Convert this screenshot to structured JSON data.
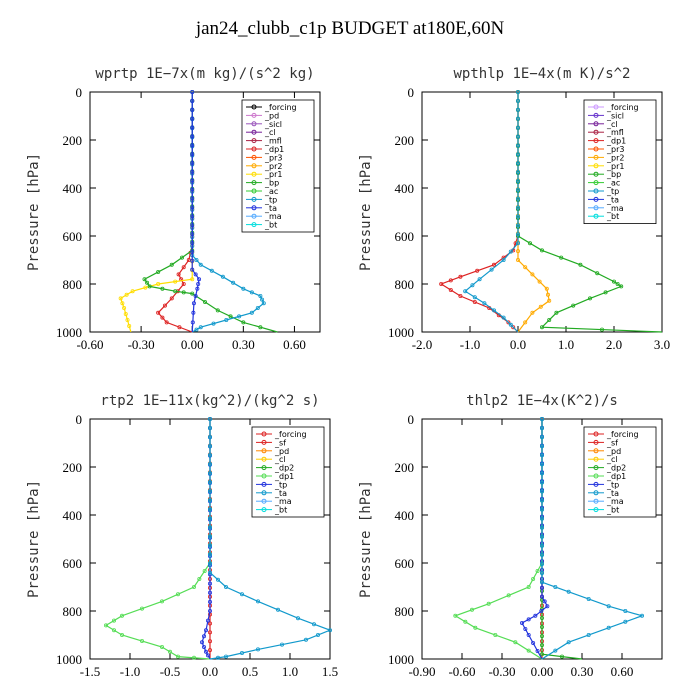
{
  "title": "jan24_clubb_c1p  BUDGET at180E,60N",
  "chart_data": [
    {
      "type": "line",
      "title": "wprtp   1E−7x(m kg)/(s^2 kg)",
      "ylabel": "Pressure [hPa]",
      "xlim": [
        -0.6,
        0.75
      ],
      "ylim": [
        0,
        1000
      ],
      "xticks": [
        -0.6,
        -0.3,
        0.0,
        0.3,
        0.6
      ],
      "xtick_labels": [
        "-0.60",
        "-0.30",
        "0.00",
        "0.30",
        "0.60"
      ],
      "yticks": [
        0,
        200,
        400,
        600,
        800,
        1000
      ],
      "ytick_labels": [
        "0",
        "200",
        "400",
        "600",
        "800",
        "1000"
      ],
      "legend_position": "top-right",
      "series": [
        {
          "name": "_forcing",
          "color": "#000000",
          "points": []
        },
        {
          "name": "_pd",
          "color": "#cc77cc",
          "points": []
        },
        {
          "name": "_sicl",
          "color": "#9955bb",
          "points": []
        },
        {
          "name": "_cl",
          "color": "#772299",
          "points": []
        },
        {
          "name": "_mfl",
          "color": "#aa2244",
          "points": []
        },
        {
          "name": "_dp1",
          "color": "#dd2222",
          "points": [
            [
              0,
              0
            ],
            [
              0,
              640
            ],
            [
              -0.02,
              700
            ],
            [
              -0.08,
              760
            ],
            [
              -0.05,
              800
            ],
            [
              -0.12,
              860
            ],
            [
              -0.2,
              920
            ],
            [
              -0.15,
              960
            ],
            [
              0,
              1000
            ]
          ]
        },
        {
          "name": "_pr3",
          "color": "#ff5500",
          "points": []
        },
        {
          "name": "_pr2",
          "color": "#ffaa00",
          "points": []
        },
        {
          "name": "_pr1",
          "color": "#ffdd00",
          "points": [
            [
              0,
              0
            ],
            [
              0,
              780
            ],
            [
              -0.2,
              800
            ],
            [
              -0.35,
              830
            ],
            [
              -0.42,
              860
            ],
            [
              -0.4,
              900
            ],
            [
              -0.38,
              950
            ],
            [
              -0.36,
              1000
            ]
          ]
        },
        {
          "name": "_bp",
          "color": "#22aa22",
          "points": [
            [
              0,
              0
            ],
            [
              0,
              660
            ],
            [
              -0.12,
              720
            ],
            [
              -0.28,
              780
            ],
            [
              -0.25,
              810
            ],
            [
              -0.1,
              830
            ],
            [
              0,
              840
            ],
            [
              0.15,
              910
            ],
            [
              0.3,
              960
            ],
            [
              0.5,
              1000
            ]
          ]
        },
        {
          "name": "_ac",
          "color": "#33cc33",
          "points": []
        },
        {
          "name": "_tp",
          "color": "#1199cc",
          "points": [
            [
              0,
              0
            ],
            [
              0,
              680
            ],
            [
              0.05,
              720
            ],
            [
              0.18,
              770
            ],
            [
              0.3,
              820
            ],
            [
              0.4,
              850
            ],
            [
              0.42,
              880
            ],
            [
              0.35,
              920
            ],
            [
              0.2,
              950
            ],
            [
              0.05,
              980
            ],
            [
              0,
              1000
            ]
          ]
        },
        {
          "name": "_ta",
          "color": "#2233dd",
          "points": [
            [
              0,
              0
            ],
            [
              0,
              740
            ],
            [
              0.04,
              780
            ],
            [
              0.03,
              820
            ],
            [
              0.01,
              880
            ],
            [
              0,
              1000
            ]
          ]
        },
        {
          "name": "_ma",
          "color": "#55aaff",
          "points": []
        },
        {
          "name": "_bt",
          "color": "#00dddd",
          "points": []
        }
      ]
    },
    {
      "type": "line",
      "title": "wpthlp   1E−4x(m K)/s^2",
      "ylabel": "Pressure [hPa]",
      "xlim": [
        -2.0,
        3.0
      ],
      "ylim": [
        0,
        1000
      ],
      "xticks": [
        -2.0,
        -1.0,
        0.0,
        1.0,
        2.0,
        3.0
      ],
      "xtick_labels": [
        "-2.0",
        "-1.0",
        "0.0",
        "1.0",
        "2.0",
        "3.0"
      ],
      "yticks": [
        0,
        200,
        400,
        600,
        800,
        1000
      ],
      "ytick_labels": [
        "0",
        "200",
        "400",
        "600",
        "800",
        "1000"
      ],
      "legend_position": "top-right",
      "series": [
        {
          "name": "_forcing",
          "color": "#cc99ff",
          "points": []
        },
        {
          "name": "_sicl",
          "color": "#6633cc",
          "points": []
        },
        {
          "name": "_cl",
          "color": "#772299",
          "points": []
        },
        {
          "name": "_mfl",
          "color": "#aa2244",
          "points": []
        },
        {
          "name": "_dp1",
          "color": "#dd2222",
          "points": [
            [
              0,
              0
            ],
            [
              0,
              600
            ],
            [
              -0.1,
              660
            ],
            [
              -0.5,
              720
            ],
            [
              -1.2,
              770
            ],
            [
              -1.6,
              800
            ],
            [
              -1.2,
              850
            ],
            [
              -0.6,
              900
            ],
            [
              -0.2,
              960
            ],
            [
              0,
              1000
            ]
          ]
        },
        {
          "name": "_pr3",
          "color": "#ff5500",
          "points": []
        },
        {
          "name": "_pr2",
          "color": "#ffaa00",
          "points": [
            [
              0,
              0
            ],
            [
              0,
              700
            ],
            [
              0.3,
              760
            ],
            [
              0.6,
              820
            ],
            [
              0.65,
              870
            ],
            [
              0.3,
              920
            ],
            [
              0,
              1000
            ]
          ]
        },
        {
          "name": "_pr1",
          "color": "#ffdd00",
          "points": []
        },
        {
          "name": "_bp",
          "color": "#22aa22",
          "points": [
            [
              0,
              0
            ],
            [
              0,
              600
            ],
            [
              0.5,
              660
            ],
            [
              1.3,
              720
            ],
            [
              2.0,
              790
            ],
            [
              2.15,
              810
            ],
            [
              1.5,
              860
            ],
            [
              0.8,
              920
            ],
            [
              0.5,
              980
            ],
            [
              3.0,
              1000
            ]
          ]
        },
        {
          "name": "_ac",
          "color": "#33cc33",
          "points": []
        },
        {
          "name": "_tp",
          "color": "#1199cc",
          "points": [
            [
              0,
              0
            ],
            [
              0,
              630
            ],
            [
              -0.3,
              700
            ],
            [
              -0.8,
              780
            ],
            [
              -1.1,
              830
            ],
            [
              -0.7,
              880
            ],
            [
              -0.3,
              940
            ],
            [
              0,
              1000
            ]
          ]
        },
        {
          "name": "_ta",
          "color": "#2233dd",
          "points": []
        },
        {
          "name": "_ma",
          "color": "#55aaff",
          "points": []
        },
        {
          "name": "_bt",
          "color": "#00dddd",
          "points": []
        }
      ]
    },
    {
      "type": "line",
      "title": "rtp2   1E−11x(kg^2)/(kg^2 s)",
      "ylabel": "Pressure [hPa]",
      "xlim": [
        -1.5,
        1.5
      ],
      "ylim": [
        0,
        1000
      ],
      "xticks": [
        -1.5,
        -1.0,
        -0.5,
        0.0,
        0.5,
        1.0,
        1.5
      ],
      "xtick_labels": [
        "-1.5",
        "-1.0",
        "-0.5",
        "0.0",
        "0.5",
        "1.0",
        "1.5"
      ],
      "yticks": [
        0,
        200,
        400,
        600,
        800,
        1000
      ],
      "ytick_labels": [
        "0",
        "200",
        "400",
        "600",
        "800",
        "1000"
      ],
      "legend_position": "top-right",
      "series": [
        {
          "name": "_forcing",
          "color": "#dd2222",
          "points": []
        },
        {
          "name": "_sf",
          "color": "#dd2222",
          "points": [
            [
              0,
              0
            ],
            [
              0,
              1000
            ]
          ]
        },
        {
          "name": "_pd",
          "color": "#ff8800",
          "points": []
        },
        {
          "name": "_cl",
          "color": "#ffcc00",
          "points": []
        },
        {
          "name": "_dp2",
          "color": "#22aa22",
          "points": []
        },
        {
          "name": "_dp1",
          "color": "#55dd55",
          "points": [
            [
              0,
              0
            ],
            [
              0,
              600
            ],
            [
              -0.2,
              700
            ],
            [
              -0.6,
              760
            ],
            [
              -1.1,
              820
            ],
            [
              -1.3,
              860
            ],
            [
              -1.1,
              900
            ],
            [
              -0.6,
              950
            ],
            [
              -0.4,
              990
            ],
            [
              0,
              1000
            ]
          ]
        },
        {
          "name": "_tp",
          "color": "#2233dd",
          "points": [
            [
              0,
              0
            ],
            [
              0,
              800
            ],
            [
              -0.05,
              880
            ],
            [
              -0.1,
              930
            ],
            [
              -0.05,
              970
            ],
            [
              0,
              1000
            ]
          ]
        },
        {
          "name": "_ta",
          "color": "#1199cc",
          "points": [
            [
              0,
              0
            ],
            [
              0,
              640
            ],
            [
              0.2,
              700
            ],
            [
              0.6,
              760
            ],
            [
              1.1,
              830
            ],
            [
              1.5,
              880
            ],
            [
              1.2,
              920
            ],
            [
              0.6,
              960
            ],
            [
              0.2,
              990
            ],
            [
              0,
              1000
            ]
          ]
        },
        {
          "name": "_ma",
          "color": "#55aaff",
          "points": []
        },
        {
          "name": "_bt",
          "color": "#00dddd",
          "points": []
        }
      ]
    },
    {
      "type": "line",
      "title": "thlp2   1E−4x(K^2)/s",
      "ylabel": "Pressure [hPa]",
      "xlim": [
        -0.9,
        0.9
      ],
      "ylim": [
        0,
        1000
      ],
      "xticks": [
        -0.9,
        -0.6,
        -0.3,
        0.0,
        0.3,
        0.6
      ],
      "xtick_labels": [
        "-0.90",
        "-0.60",
        "-0.30",
        "0.00",
        "0.30",
        "0.60"
      ],
      "yticks": [
        0,
        200,
        400,
        600,
        800,
        1000
      ],
      "ytick_labels": [
        "0",
        "200",
        "400",
        "600",
        "800",
        "1000"
      ],
      "legend_position": "top-right",
      "series": [
        {
          "name": "_forcing",
          "color": "#dd2222",
          "points": []
        },
        {
          "name": "_sf",
          "color": "#dd2222",
          "points": [
            [
              0,
              0
            ],
            [
              0,
              1000
            ]
          ]
        },
        {
          "name": "_pd",
          "color": "#ff8800",
          "points": []
        },
        {
          "name": "_cl",
          "color": "#ffcc00",
          "points": []
        },
        {
          "name": "_dp2",
          "color": "#22aa22",
          "points": [
            [
              0,
              0
            ],
            [
              0,
              980
            ],
            [
              0.3,
              1000
            ]
          ]
        },
        {
          "name": "_dp1",
          "color": "#55dd55",
          "points": [
            [
              0,
              0
            ],
            [
              0,
              600
            ],
            [
              -0.1,
              700
            ],
            [
              -0.4,
              770
            ],
            [
              -0.65,
              820
            ],
            [
              -0.5,
              870
            ],
            [
              -0.2,
              930
            ],
            [
              0,
              1000
            ]
          ]
        },
        {
          "name": "_tp",
          "color": "#2233dd",
          "points": [
            [
              0,
              0
            ],
            [
              0,
              740
            ],
            [
              0.04,
              780
            ],
            [
              -0.05,
              820
            ],
            [
              -0.15,
              850
            ],
            [
              -0.1,
              900
            ],
            [
              0,
              1000
            ]
          ]
        },
        {
          "name": "_ta",
          "color": "#1199cc",
          "points": [
            [
              0,
              0
            ],
            [
              0,
              680
            ],
            [
              0.2,
              720
            ],
            [
              0.5,
              780
            ],
            [
              0.75,
              820
            ],
            [
              0.5,
              870
            ],
            [
              0.2,
              930
            ],
            [
              0,
              1000
            ]
          ]
        },
        {
          "name": "_ma",
          "color": "#55aaff",
          "points": []
        },
        {
          "name": "_bt",
          "color": "#00dddd",
          "points": []
        }
      ]
    }
  ]
}
